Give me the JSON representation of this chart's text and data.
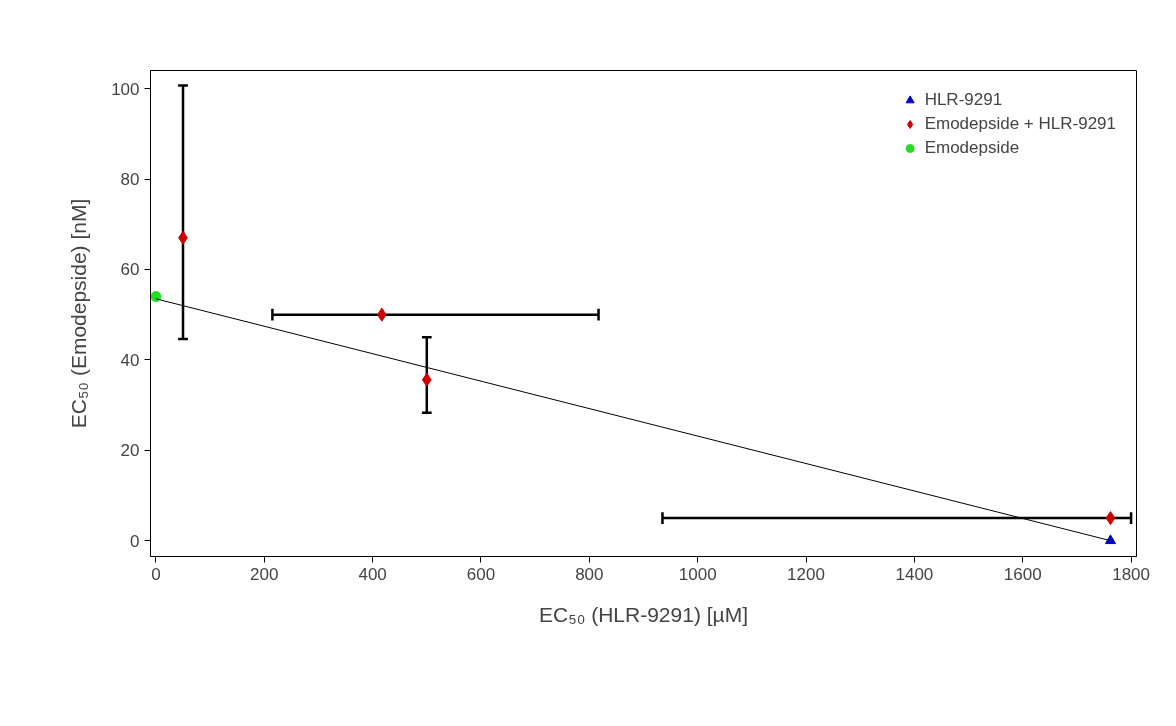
{
  "chart_data": {
    "type": "scatter",
    "xlabel": "EC₅₀ (HLR-9291) [µM]",
    "ylabel": "EC₅₀ (Emodepside) [nM]",
    "xlim": [
      -10,
      1810
    ],
    "ylim": [
      -3.5,
      104
    ],
    "xticks": [
      0,
      200,
      400,
      600,
      800,
      1000,
      1200,
      1400,
      1600,
      1800
    ],
    "yticks": [
      0,
      20,
      40,
      60,
      80,
      100
    ],
    "grid": false,
    "legend": "top right",
    "series": [
      {
        "name": "HLR-9291",
        "color": "#0000cc",
        "marker": "triangle",
        "x": [
          1762
        ],
        "values": [
          0
        ]
      },
      {
        "name": "Emodepside + HLR-9291",
        "color": "#cc0000",
        "marker": "diamond",
        "x": [
          50,
          417,
          500,
          1762
        ],
        "values": [
          67,
          50,
          35.6,
          5
        ],
        "errors": [
          [
            44.6,
            100.7
          ],
          null,
          [
            28.3,
            45
          ],
          null
        ],
        "xerrors": [
          null,
          [
            215,
            817
          ],
          null,
          [
            935,
            1800
          ]
        ]
      },
      {
        "name": "Emodepside",
        "color": "#22dd22",
        "marker": "circle",
        "x": [
          0
        ],
        "values": [
          54
        ]
      },
      {
        "type": "line",
        "color": "#000000",
        "marker": "none",
        "line_style": "solid",
        "x": [
          0,
          1762
        ],
        "values": [
          53.5,
          0
        ]
      }
    ]
  }
}
